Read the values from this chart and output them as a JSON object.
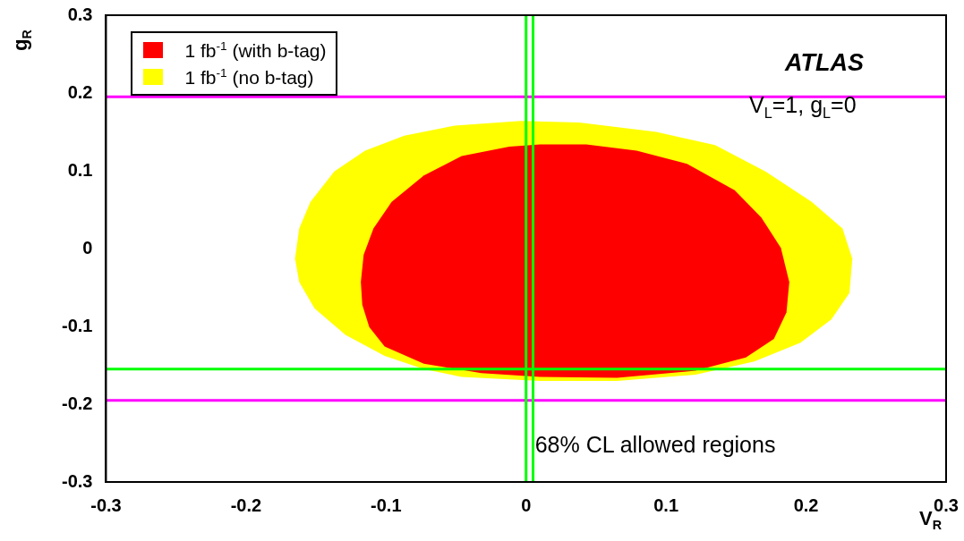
{
  "chart_data": {
    "type": "area",
    "xlabel": "V$_{R}$",
    "ylabel": "g$_{R}$",
    "xlim": [
      -0.3,
      0.3
    ],
    "ylim": [
      -0.3,
      0.3
    ],
    "xticks": [
      -0.3,
      -0.2,
      -0.1,
      0,
      0.1,
      0.2,
      0.3
    ],
    "yticks": [
      -0.3,
      -0.2,
      -0.1,
      0,
      0.1,
      0.2,
      0.3
    ],
    "grid": false,
    "legend": "top left",
    "series": [
      {
        "name": "1 fb$^{-1}$ (with b-tag)",
        "color": "#ff0000",
        "x": [
          -0.118,
          -0.116,
          -0.109,
          -0.096,
          -0.073,
          -0.046,
          -0.012,
          0.01,
          0.043,
          0.079,
          0.115,
          0.149,
          0.168,
          0.182,
          0.188,
          0.186,
          0.177,
          0.157,
          0.121,
          0.065,
          0.01,
          -0.032,
          -0.073,
          -0.101,
          -0.112,
          -0.117,
          -0.118
        ],
        "values": [
          -0.043,
          -0.008,
          0.026,
          0.06,
          0.094,
          0.119,
          0.131,
          0.134,
          0.134,
          0.126,
          0.109,
          0.075,
          0.04,
          0.001,
          -0.043,
          -0.082,
          -0.116,
          -0.14,
          -0.157,
          -0.166,
          -0.165,
          -0.16,
          -0.148,
          -0.126,
          -0.101,
          -0.072,
          -0.043
        ]
      },
      {
        "name": "1 fb$^{-1}$ (no b-tag)",
        "color": "#ffff00",
        "x": [
          -0.165,
          -0.162,
          -0.154,
          -0.137,
          -0.115,
          -0.087,
          -0.051,
          -0.004,
          0.038,
          0.093,
          0.135,
          0.171,
          0.204,
          0.226,
          0.233,
          0.231,
          0.218,
          0.196,
          0.163,
          0.121,
          0.065,
          0.01,
          -0.046,
          -0.073,
          -0.101,
          -0.129,
          -0.151,
          -0.162,
          -0.165
        ],
        "values": [
          -0.013,
          0.026,
          0.06,
          0.099,
          0.126,
          0.145,
          0.158,
          0.164,
          0.162,
          0.15,
          0.133,
          0.099,
          0.06,
          0.026,
          -0.013,
          -0.057,
          -0.091,
          -0.121,
          -0.145,
          -0.162,
          -0.17,
          -0.17,
          -0.165,
          -0.155,
          -0.138,
          -0.111,
          -0.077,
          -0.043,
          -0.013
        ]
      }
    ],
    "ref_lines": [
      {
        "axis": "y",
        "value": 0.195,
        "color": "#ff00ff"
      },
      {
        "axis": "y",
        "value": -0.195,
        "color": "#ff00ff"
      },
      {
        "axis": "y",
        "value": -0.155,
        "color": "#00ff00"
      },
      {
        "axis": "x",
        "value": 0,
        "color": "#00ff00"
      },
      {
        "axis": "x",
        "value": 0.005,
        "color": "#00ff00"
      }
    ],
    "annotations": [
      "ATLAS",
      "V$_{L}$=1, g$_{L}$=0",
      "68% CL allowed regions"
    ]
  }
}
